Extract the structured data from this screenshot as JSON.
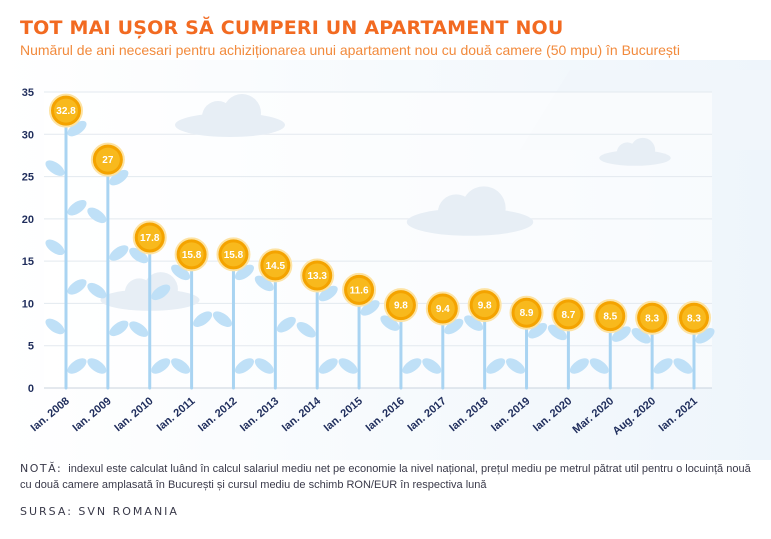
{
  "header": {
    "title": "TOT MAI UȘOR SĂ CUMPERI UN APARTAMENT NOU",
    "subtitle": "Numărul de ani necesari pentru achiziționarea unui apartament nou cu două camere (50 mpu) în București"
  },
  "footer": {
    "note_label": "NOTĂ:",
    "note_text": "indexul este calculat luând în calcul salariul mediu net pe economie la nivel național, prețul mediu pe metrul pătrat util pentru o locuință nouă cu două camere amplasată în București și cursul mediu de schimb RON/EUR în respectiva lună",
    "source": "SURSA: SVN ROMANIA"
  },
  "colors": {
    "stem": "#a9d4f2",
    "leaf": "#bfe0f7",
    "flower": "#f4a300",
    "flower_inner": "#f8b91d",
    "axis_text": "#1f2d5c",
    "title": "#f26a21"
  },
  "chart_data": {
    "type": "bar",
    "categories": [
      "Ian. 2008",
      "Ian. 2009",
      "Ian. 2010",
      "Ian. 2011",
      "Ian. 2012",
      "Ian. 2013",
      "Ian. 2014",
      "Ian. 2015",
      "Ian. 2016",
      "Ian. 2017",
      "Ian. 2018",
      "Ian. 2019",
      "Ian. 2020",
      "Mar. 2020",
      "Aug. 2020",
      "Ian. 2021"
    ],
    "values": [
      32.8,
      27,
      17.8,
      15.8,
      15.8,
      14.5,
      13.3,
      11.6,
      9.8,
      9.4,
      9.8,
      8.9,
      8.7,
      8.5,
      8.3,
      8.3
    ],
    "value_labels": [
      "32.8",
      "27",
      "17.8",
      "15.8",
      "15.8",
      "14.5",
      "13.3",
      "11.6",
      "9.8",
      "9.4",
      "9.8",
      "8.9",
      "8.7",
      "8.5",
      "8.3",
      "8.3"
    ],
    "y_ticks": [
      0,
      5,
      10,
      15,
      20,
      25,
      30,
      35
    ],
    "ylim": [
      0,
      35
    ],
    "grid": true,
    "style": "flower stems with value badges"
  }
}
